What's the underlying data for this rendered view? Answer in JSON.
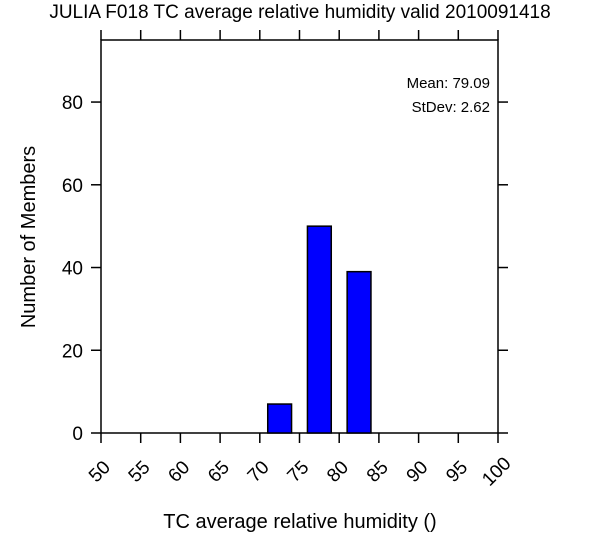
{
  "chart_data": {
    "type": "bar",
    "title": "JULIA F018 TC average relative humidity valid 2010091418",
    "xlabel": "TC average relative humidity ()",
    "ylabel": "Number of Members",
    "xlim": [
      50,
      100
    ],
    "ylim": [
      0,
      95
    ],
    "xticks": [
      "50",
      "55",
      "60",
      "65",
      "70",
      "75",
      "80",
      "85",
      "90",
      "95",
      "100"
    ],
    "yticks": [
      "0",
      "20",
      "40",
      "60",
      "80"
    ],
    "bins": [
      {
        "from": 71,
        "to": 74,
        "value": 7
      },
      {
        "from": 76,
        "to": 79,
        "value": 50
      },
      {
        "from": 81,
        "to": 84,
        "value": 39
      }
    ],
    "bar_color": "#0000ff",
    "stats": {
      "mean": "Mean: 79.09",
      "stdev": "StDev: 2.62"
    },
    "grid": false
  }
}
